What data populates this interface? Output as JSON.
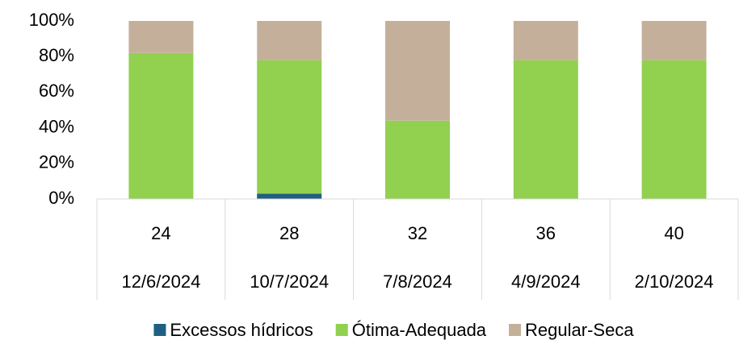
{
  "chart_data": {
    "type": "stacked_bar",
    "categories": [
      "24",
      "28",
      "32",
      "36",
      "40"
    ],
    "category_dates": [
      "12/6/2024",
      "10/7/2024",
      "7/8/2024",
      "4/9/2024",
      "2/10/2024"
    ],
    "series": [
      {
        "name": "Excessos hídricos",
        "color": "#1f5f82",
        "values": [
          0,
          3,
          0,
          0,
          0
        ]
      },
      {
        "name": "Ótima-Adequada",
        "color": "#92d050",
        "values": [
          82,
          75,
          44,
          78,
          78
        ]
      },
      {
        "name": "Regular-Seca",
        "color": "#c4b09a",
        "values": [
          18,
          22,
          56,
          22,
          22
        ]
      }
    ],
    "ylim": [
      0,
      100
    ],
    "yticks": [
      {
        "value": 0,
        "label": "0%"
      },
      {
        "value": 20,
        "label": "20%"
      },
      {
        "value": 40,
        "label": "40%"
      },
      {
        "value": 60,
        "label": "60%"
      },
      {
        "value": 80,
        "label": "80%"
      },
      {
        "value": 100,
        "label": "100%"
      }
    ],
    "legend": "bottom"
  }
}
